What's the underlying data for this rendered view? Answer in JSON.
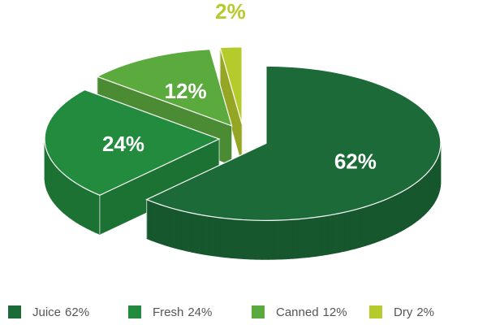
{
  "chart_data": {
    "type": "pie3d",
    "categories": [
      "Juice",
      "Fresh",
      "Canned",
      "Dry"
    ],
    "values": [
      62,
      24,
      12,
      2
    ],
    "value_labels": [
      "62%",
      "24%",
      "12%",
      "2%"
    ],
    "colors": [
      "#1b6a37",
      "#228b3d",
      "#5aaa3e",
      "#b5cb2c"
    ],
    "legend": "bottom"
  }
}
